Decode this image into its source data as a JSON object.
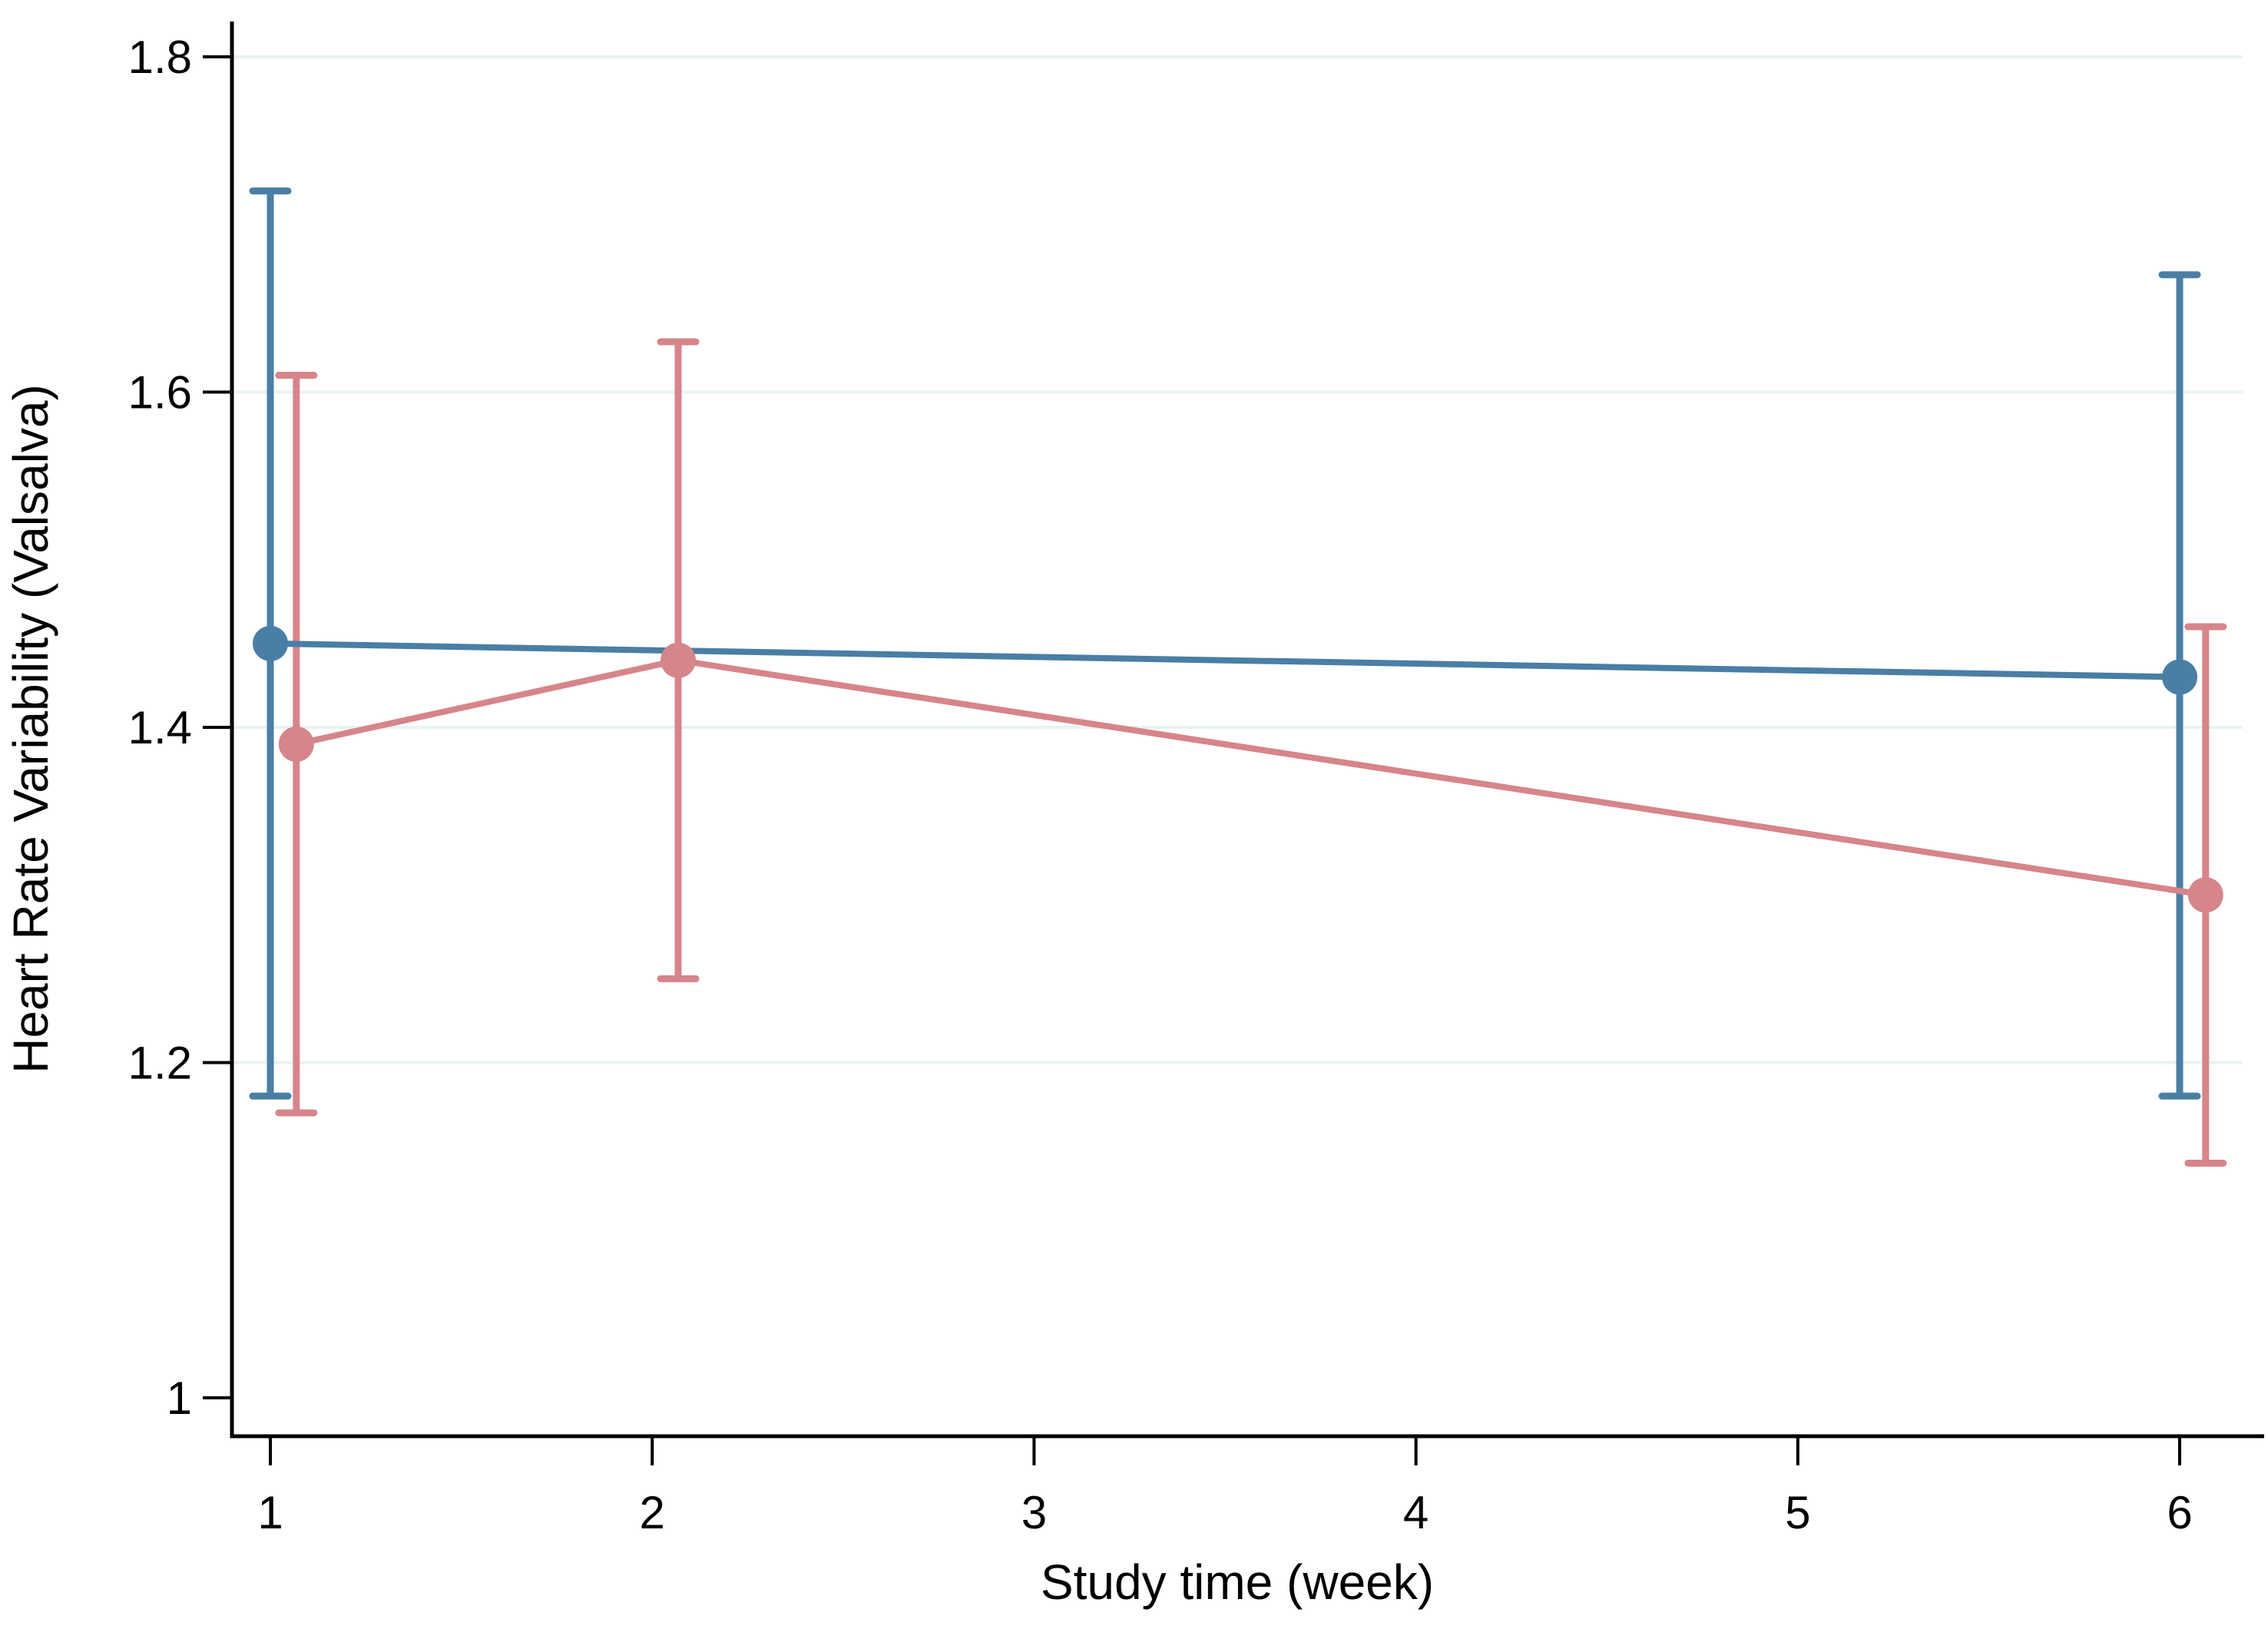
{
  "page": {
    "background": "#ffffff"
  },
  "chart_data": {
    "type": "line",
    "title": "",
    "xlabel": "Study time (week)",
    "ylabel": "Heart Rate Variability (Valsalva)",
    "legend": "none",
    "grid": "horizontal-only",
    "grid_color": "#eaf2f3",
    "axis_color": "#000000",
    "ylim": [
      0.97,
      1.82
    ],
    "xlim_weeks": [
      0.9,
      6.25
    ],
    "x_ticks": [
      {
        "value": 1,
        "label": "1"
      },
      {
        "value": 2,
        "label": "2"
      },
      {
        "value": 3,
        "label": "3"
      },
      {
        "value": 4,
        "label": "4"
      },
      {
        "value": 5,
        "label": "5"
      },
      {
        "value": 6,
        "label": "6"
      }
    ],
    "y_ticks": [
      {
        "value": 1.0,
        "label": "1"
      },
      {
        "value": 1.2,
        "label": "1.2"
      },
      {
        "value": 1.4,
        "label": "1.4"
      },
      {
        "value": 1.6,
        "label": "1.6"
      },
      {
        "value": 1.8,
        "label": "1.8"
      }
    ],
    "gridline_values": [
      1.2,
      1.4,
      1.6,
      1.8
    ],
    "series": [
      {
        "name": "blue-series",
        "color": "#4a7ea5",
        "x_offset_weeks": 0,
        "points": [
          {
            "week": 1,
            "mean": 1.45,
            "ci_low": 1.18,
            "ci_high": 1.72
          },
          {
            "week": 6,
            "mean": 1.43,
            "ci_low": 1.18,
            "ci_high": 1.67
          }
        ]
      },
      {
        "name": "pink-series",
        "color": "#d6858a",
        "x_offset_weeks": 0.068,
        "points": [
          {
            "week": 1,
            "mean": 1.39,
            "ci_low": 1.17,
            "ci_high": 1.61
          },
          {
            "week": 2,
            "mean": 1.44,
            "ci_low": 1.25,
            "ci_high": 1.63
          },
          {
            "week": 6,
            "mean": 1.3,
            "ci_low": 1.14,
            "ci_high": 1.46
          }
        ]
      }
    ]
  }
}
